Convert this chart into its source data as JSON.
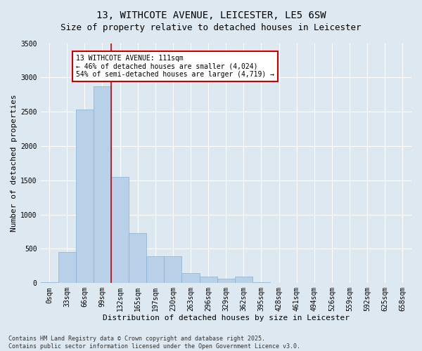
{
  "title": "13, WITHCOTE AVENUE, LEICESTER, LE5 6SW",
  "subtitle": "Size of property relative to detached houses in Leicester",
  "xlabel": "Distribution of detached houses by size in Leicester",
  "ylabel": "Number of detached properties",
  "footnote1": "Contains HM Land Registry data © Crown copyright and database right 2025.",
  "footnote2": "Contains public sector information licensed under the Open Government Licence v3.0.",
  "bar_labels": [
    "0sqm",
    "33sqm",
    "66sqm",
    "99sqm",
    "132sqm",
    "165sqm",
    "197sqm",
    "230sqm",
    "263sqm",
    "296sqm",
    "329sqm",
    "362sqm",
    "395sqm",
    "428sqm",
    "461sqm",
    "494sqm",
    "526sqm",
    "559sqm",
    "592sqm",
    "625sqm",
    "658sqm"
  ],
  "bar_values": [
    10,
    450,
    2530,
    2870,
    1550,
    730,
    390,
    390,
    150,
    90,
    60,
    90,
    10,
    0,
    0,
    0,
    0,
    0,
    0,
    0,
    0
  ],
  "bar_color": "#b8d0e8",
  "bar_edge_color": "#8ab0d0",
  "vline_index": 3,
  "vline_color": "#cc0000",
  "annotation_text": "13 WITHCOTE AVENUE: 111sqm\n← 46% of detached houses are smaller (4,024)\n54% of semi-detached houses are larger (4,719) →",
  "annotation_box_facecolor": "#ffffff",
  "annotation_box_edgecolor": "#cc0000",
  "ylim": [
    0,
    3500
  ],
  "yticks": [
    0,
    500,
    1000,
    1500,
    2000,
    2500,
    3000,
    3500
  ],
  "background_color": "#dde8f0",
  "plot_background": "#dde8f0",
  "grid_color": "#ffffff",
  "title_fontsize": 10,
  "axis_label_fontsize": 8,
  "tick_fontsize": 7,
  "footnote_fontsize": 6
}
